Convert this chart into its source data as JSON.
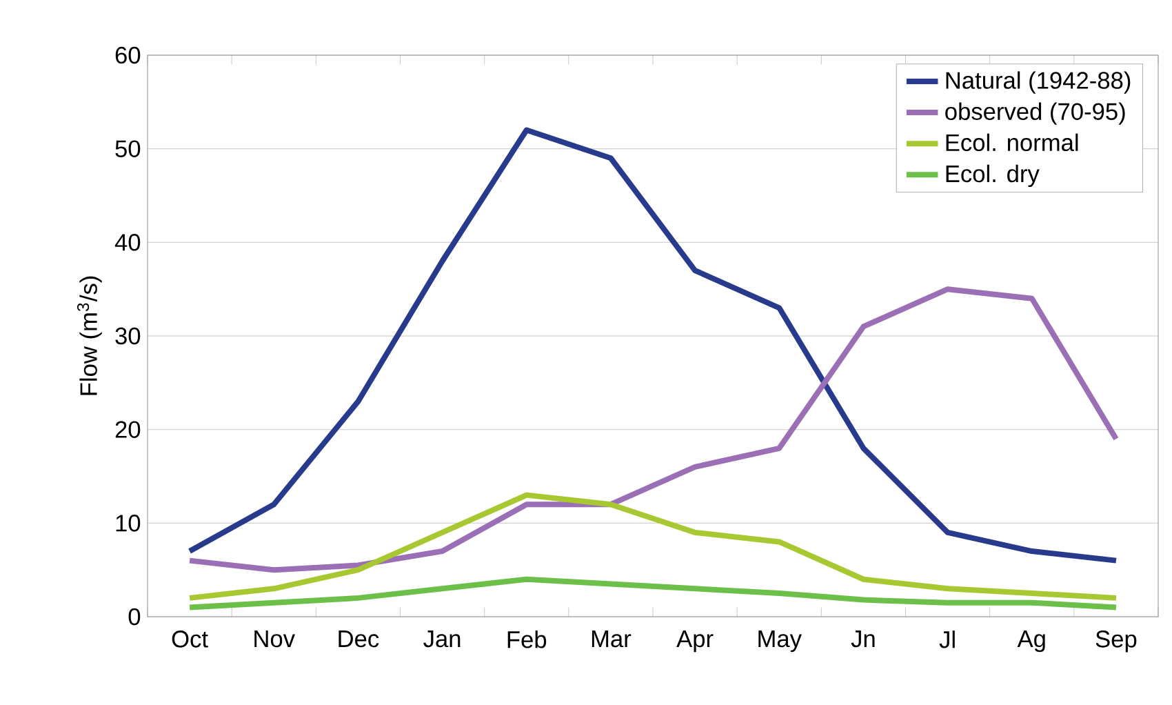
{
  "chart_data": {
    "type": "line",
    "ylabel": "Flow  (m$^{3}$/s)",
    "categories": [
      "Oct",
      "Nov",
      "Dec",
      "Jan",
      "Feb",
      "Mar",
      "Apr",
      "May",
      "Jn",
      "Jl",
      "Ag",
      "Sep"
    ],
    "series": [
      {
        "name": "Natural (1942-88)",
        "color": "#283a8c",
        "values": [
          7,
          12,
          23,
          38,
          52,
          49,
          37,
          33,
          18,
          9,
          7,
          6
        ]
      },
      {
        "name": "observed (70-95)",
        "color": "#9b6fb5",
        "values": [
          6,
          5,
          5.5,
          7,
          12,
          12,
          16,
          18,
          31,
          35,
          34,
          19
        ]
      },
      {
        "name": "Ecol. normal",
        "color": "#a8c832",
        "values": [
          2,
          3,
          5,
          9,
          13,
          12,
          9,
          8,
          4,
          3,
          2.5,
          2
        ]
      },
      {
        "name": "Ecol. dry",
        "color": "#6cc04a",
        "values": [
          1,
          1.5,
          2,
          3,
          4,
          3.5,
          3,
          2.5,
          1.8,
          1.5,
          1.5,
          1
        ]
      }
    ],
    "ylim": [
      0,
      60
    ],
    "yticks": [
      0,
      10,
      20,
      30,
      40,
      50,
      60
    ],
    "grid": "y",
    "legend": "top right",
    "marker": "none",
    "line_style": "solid"
  }
}
